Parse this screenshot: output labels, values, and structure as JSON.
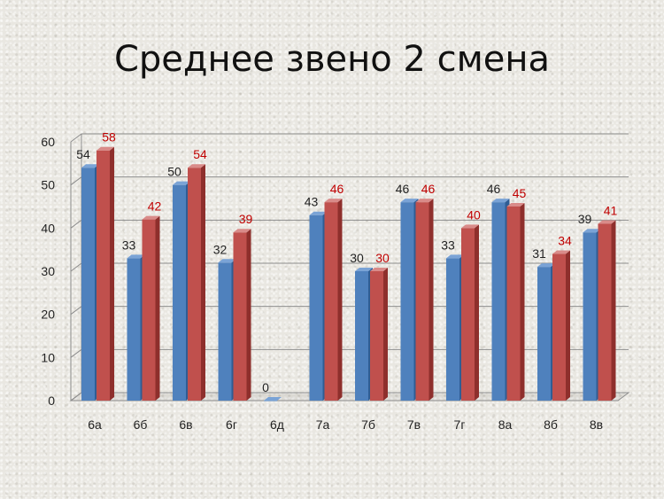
{
  "title": "Среднее звено 2 смена",
  "colors": {
    "series_a": "#4f81bd",
    "series_a_dark": "#2f5d94",
    "series_b": "#c0504d",
    "series_b_dark": "#8e2f2c",
    "label_b": "#c00000",
    "grid": "#8c8c8c"
  },
  "chart_data": {
    "type": "bar",
    "title": "Среднее звено 2 смена",
    "categories": [
      "6а",
      "6б",
      "6в",
      "6г",
      "6д",
      "7а",
      "7б",
      "7в",
      "7г",
      "8а",
      "8б",
      "8в"
    ],
    "series": [
      {
        "values": [
          54,
          33,
          50,
          32,
          0,
          43,
          30,
          46,
          33,
          46,
          31,
          39
        ]
      },
      {
        "values": [
          58,
          42,
          54,
          39,
          null,
          46,
          30,
          46,
          40,
          45,
          34,
          41
        ]
      }
    ],
    "ylim": [
      0,
      60
    ],
    "yticks": [
      0,
      10,
      20,
      30,
      40,
      50,
      60
    ],
    "grid": true,
    "data_labels": true,
    "legend": "none",
    "style": "3d-clustered"
  }
}
